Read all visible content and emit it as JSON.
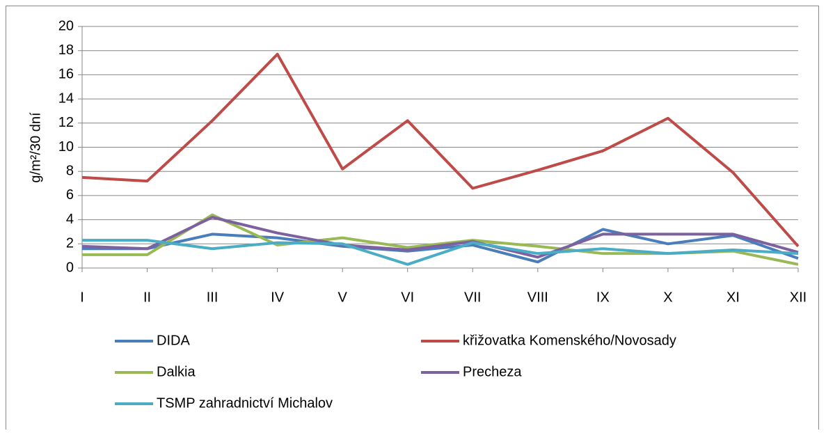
{
  "chart_data": {
    "type": "line",
    "y_label": "g/m²/30 dní",
    "categories": [
      "I",
      "II",
      "III",
      "IV",
      "V",
      "VI",
      "VII",
      "VIII",
      "IX",
      "X",
      "XI",
      "XII"
    ],
    "series": [
      {
        "name": "DIDA",
        "color": "#4a7ebb",
        "values": [
          1.6,
          1.6,
          2.8,
          2.5,
          1.8,
          1.4,
          1.9,
          0.5,
          3.2,
          2.0,
          2.7,
          0.8
        ]
      },
      {
        "name": "křižovatka Komenského/Novosady",
        "color": "#be4b48",
        "values": [
          7.5,
          7.2,
          12.2,
          17.7,
          8.2,
          12.2,
          6.6,
          8.1,
          9.7,
          12.4,
          7.9,
          1.8
        ]
      },
      {
        "name": "Dalkia",
        "color": "#98b954",
        "values": [
          1.1,
          1.1,
          4.4,
          1.9,
          2.5,
          1.7,
          2.3,
          1.8,
          1.2,
          1.2,
          1.4,
          0.3
        ]
      },
      {
        "name": "Precheza",
        "color": "#7d60a0",
        "values": [
          1.8,
          1.6,
          4.2,
          2.9,
          1.9,
          1.5,
          2.2,
          0.9,
          2.8,
          2.8,
          2.8,
          1.3
        ]
      },
      {
        "name": "TSMP zahradnictví Michalov",
        "color": "#4bacc6",
        "values": [
          2.3,
          2.3,
          1.6,
          2.1,
          2.0,
          0.3,
          2.1,
          1.2,
          1.6,
          1.2,
          1.5,
          1.2
        ]
      }
    ],
    "ylim": [
      0,
      20
    ],
    "yticks": [
      0,
      2,
      4,
      6,
      8,
      10,
      12,
      14,
      16,
      18,
      20
    ],
    "grid": true
  }
}
